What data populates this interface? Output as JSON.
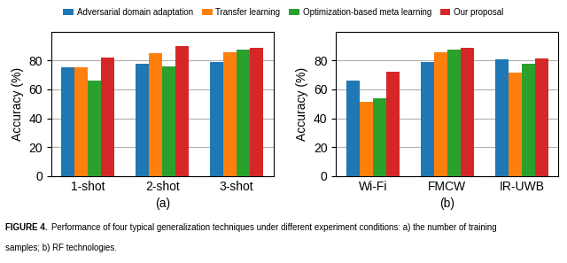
{
  "chart_data": [
    {
      "type": "bar",
      "categories": [
        "1-shot",
        "2-shot",
        "3-shot"
      ],
      "series": [
        {
          "name": "Adversarial domain adaptation",
          "values": [
            75.5,
            77.5,
            79.0
          ]
        },
        {
          "name": "Transfer learning",
          "values": [
            75.0,
            85.0,
            85.5
          ]
        },
        {
          "name": "Optimization-based meta learning",
          "values": [
            66.0,
            76.0,
            87.5
          ]
        },
        {
          "name": "Our proposal",
          "values": [
            82.0,
            90.0,
            89.0
          ]
        }
      ],
      "xlabel": "(a)",
      "ylabel": "Accuracy (%)",
      "ylim": [
        0,
        100
      ],
      "yticks": [
        0,
        20,
        40,
        60,
        80
      ],
      "grid": true,
      "legend": "upper center"
    },
    {
      "type": "bar",
      "categories": [
        "Wi-Fi",
        "FMCW",
        "IR-UWB"
      ],
      "series": [
        {
          "name": "Adversarial domain adaptation",
          "values": [
            66.0,
            79.0,
            81.0
          ]
        },
        {
          "name": "Transfer learning",
          "values": [
            51.5,
            85.5,
            71.5
          ]
        },
        {
          "name": "Optimization-based meta learning",
          "values": [
            54.0,
            87.5,
            78.0
          ]
        },
        {
          "name": "Our proposal",
          "values": [
            72.5,
            89.0,
            81.5
          ]
        }
      ],
      "xlabel": "(b)",
      "ylabel": "Accuracy (%)",
      "ylim": [
        0,
        100
      ],
      "yticks": [
        0,
        20,
        40,
        60,
        80
      ],
      "grid": true,
      "legend": "upper center"
    }
  ],
  "annotations": [
    "FIGURE 4.",
    "Performance of four typical generalization techniques under different experiment conditions: a) the number of training",
    "samples; b) RF technologies."
  ]
}
